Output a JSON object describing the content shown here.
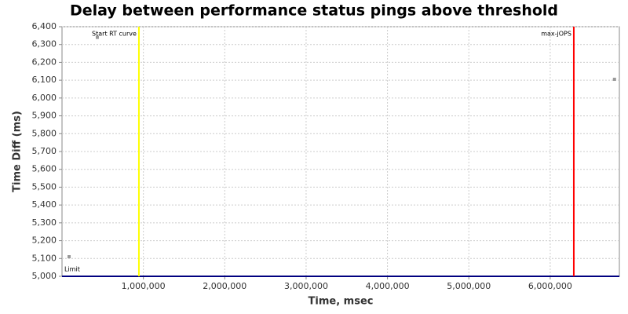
{
  "chart_data": {
    "type": "scatter",
    "title": "Delay between performance status pings above threshold",
    "x_label": "Time, msec",
    "y_label": "Time Diff (ms)",
    "x": [
      87000,
      434000,
      6790000
    ],
    "values": [
      5110,
      6340,
      6105
    ],
    "color": "#999999",
    "xlim": [
      0,
      6850000
    ],
    "ylim": [
      5000,
      6400
    ],
    "xticks": [
      {
        "value": 1000000,
        "label": "1,000,000"
      },
      {
        "value": 2000000,
        "label": "2,000,000"
      },
      {
        "value": 3000000,
        "label": "3,000,000"
      },
      {
        "value": 4000000,
        "label": "4,000,000"
      },
      {
        "value": 5000000,
        "label": "5,000,000"
      },
      {
        "value": 6000000,
        "label": "6,000,000"
      }
    ],
    "yticks": [
      {
        "value": 5000,
        "label": "5,000"
      },
      {
        "value": 5100,
        "label": "5,100"
      },
      {
        "value": 5200,
        "label": "5,200"
      },
      {
        "value": 5300,
        "label": "5,300"
      },
      {
        "value": 5400,
        "label": "5,400"
      },
      {
        "value": 5500,
        "label": "5,500"
      },
      {
        "value": 5600,
        "label": "5,600"
      },
      {
        "value": 5700,
        "label": "5,700"
      },
      {
        "value": 5800,
        "label": "5,800"
      },
      {
        "value": 5900,
        "label": "5,900"
      },
      {
        "value": 6000,
        "label": "6,000"
      },
      {
        "value": 6100,
        "label": "6,100"
      },
      {
        "value": 6200,
        "label": "6,200"
      },
      {
        "value": 6300,
        "label": "6,300"
      },
      {
        "value": 6400,
        "label": "6,400"
      }
    ],
    "grid": true,
    "x_markers": [
      {
        "label": "Start RT curve",
        "value": 945000,
        "color": "#ffff00"
      },
      {
        "label": "max-jOPS",
        "value": 6290000,
        "color": "#ff0000"
      }
    ],
    "y_markers": [
      {
        "label": "Limit",
        "value": 5000,
        "color": "#000080"
      }
    ]
  }
}
